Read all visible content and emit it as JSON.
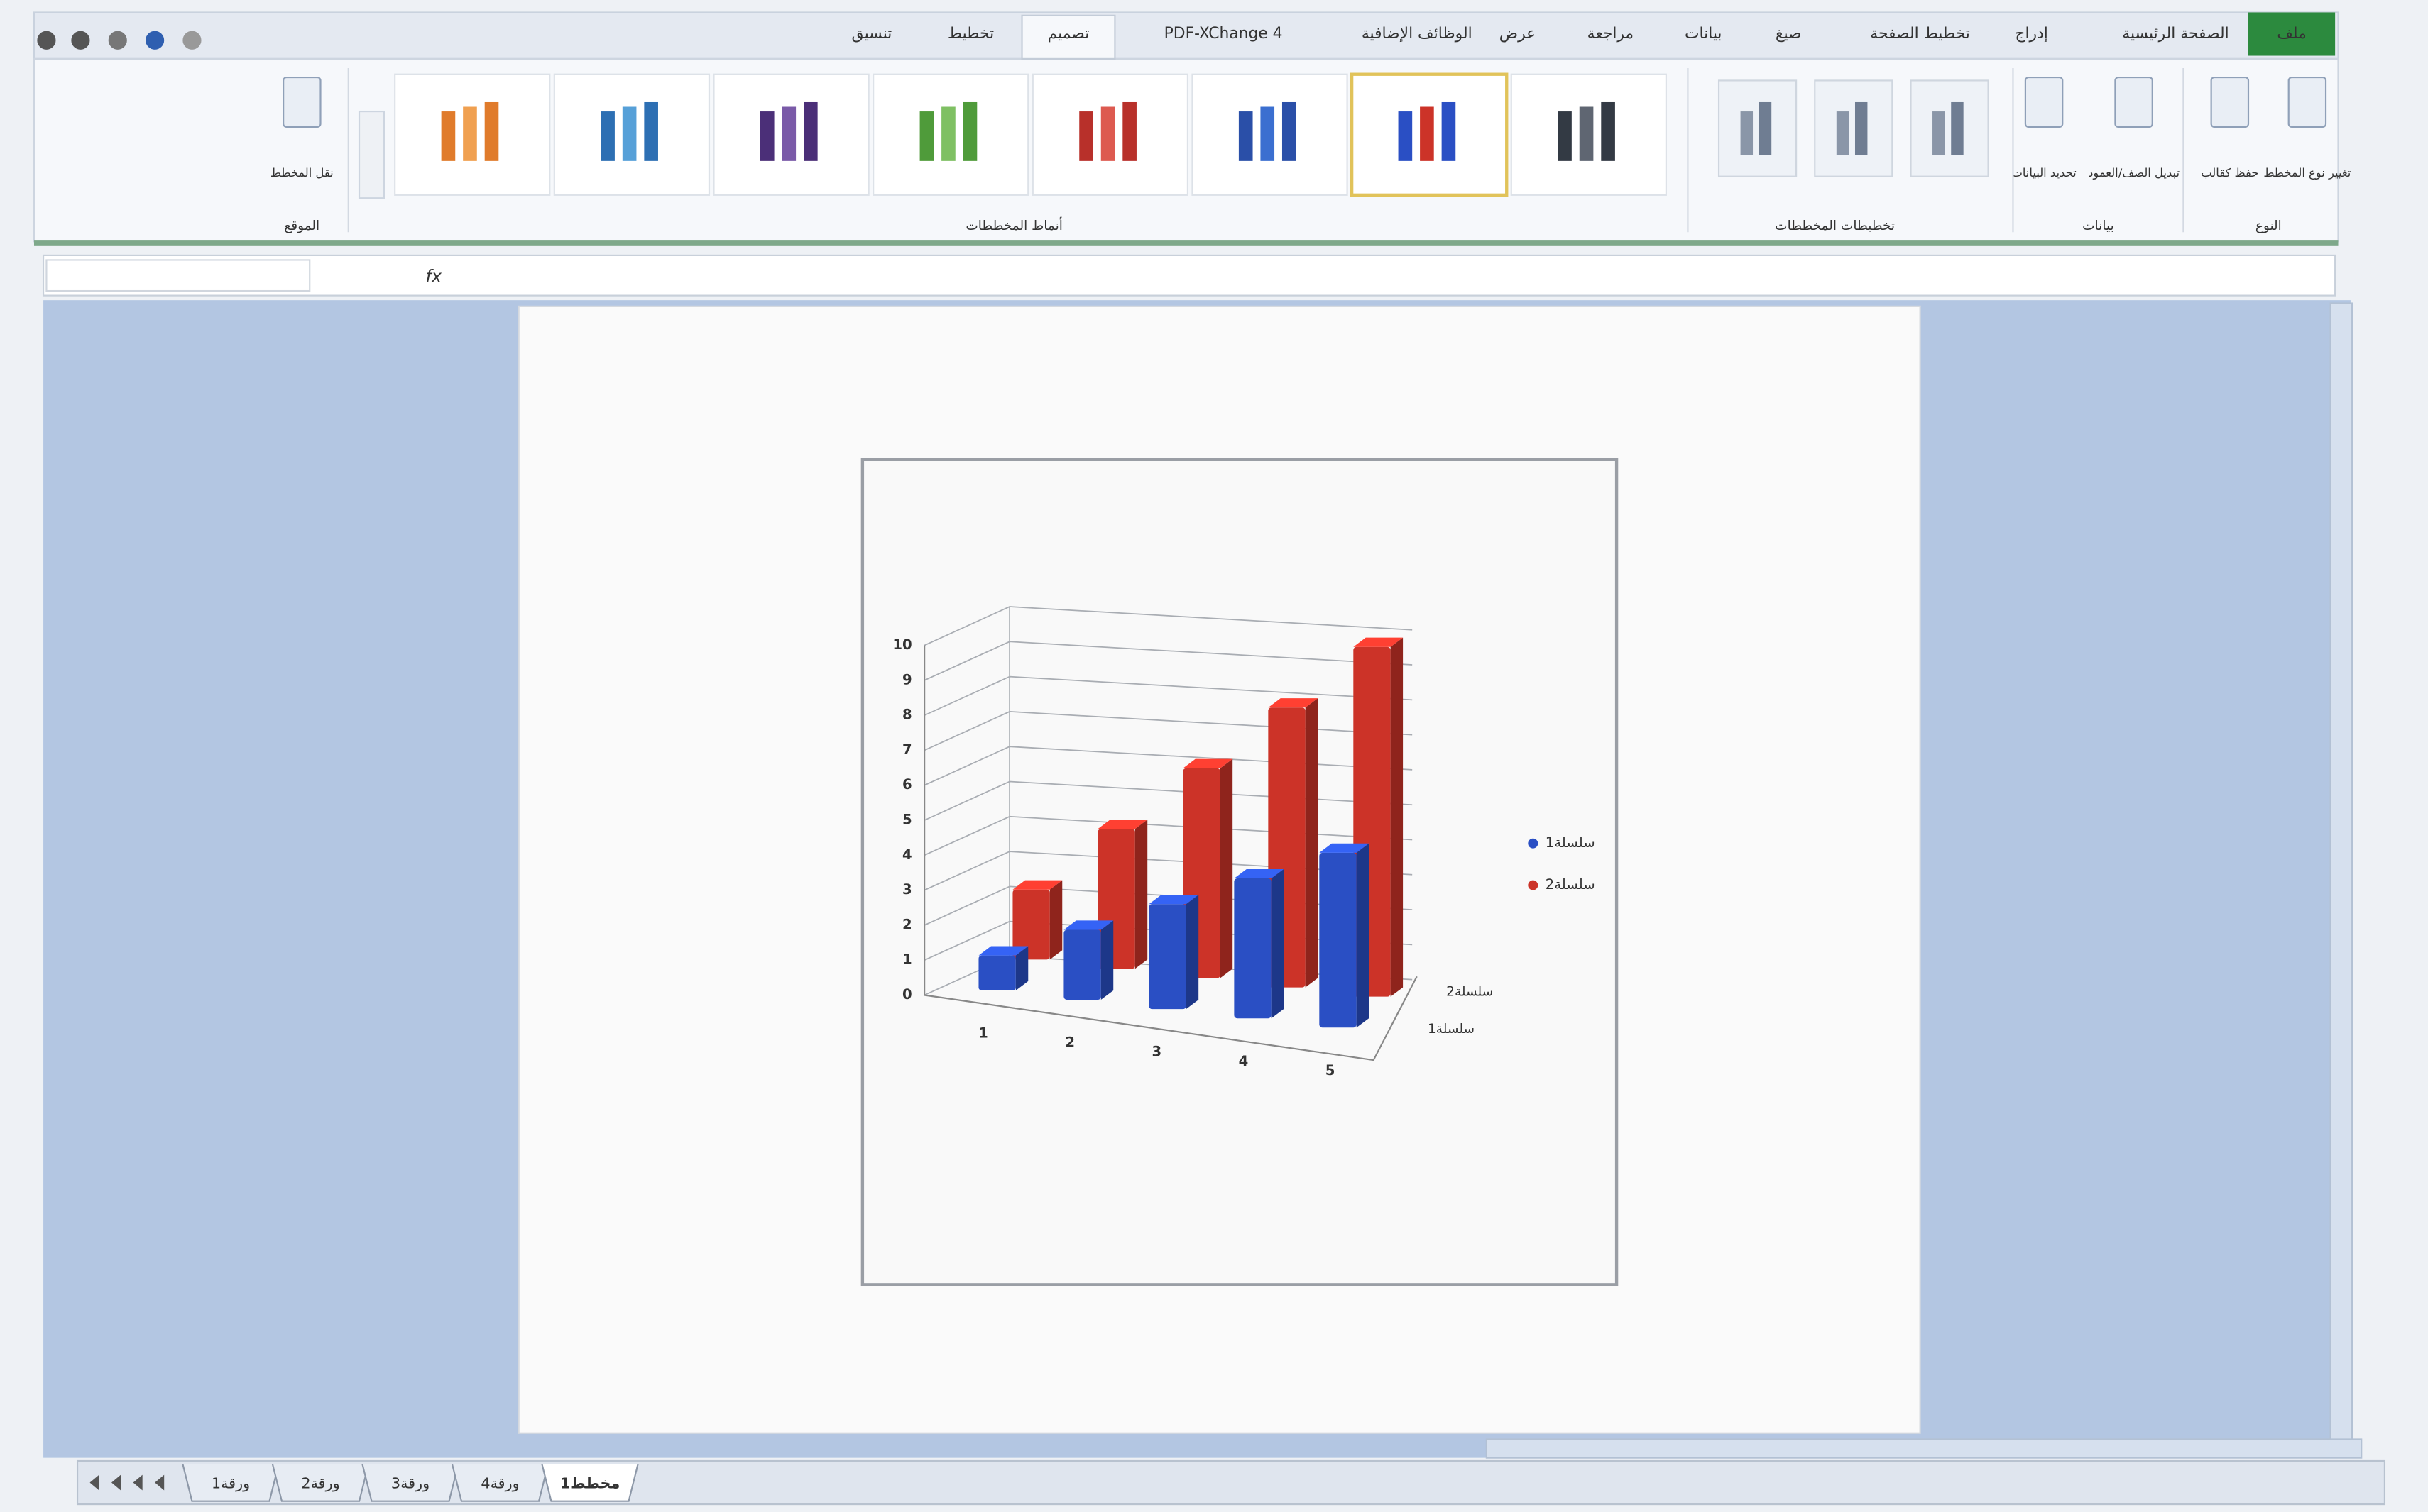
{
  "ribbon": {
    "tabs": [
      "ملف",
      "الصفحة الرئيسية",
      "إدراج",
      "تخطيط الصفحة",
      "صيغ",
      "بيانات",
      "مراجعة",
      "عرض",
      "الوظائف الإضافية",
      "PDF-XChange 4",
      "تصميم",
      "تخطيط",
      "تنسيق"
    ],
    "groups": [
      {
        "label": "النوع",
        "buttons": [
          "تغيير نوع المخطط",
          "حفظ كقالب"
        ]
      },
      {
        "label": "بيانات",
        "buttons": [
          "تبديل الصف/العمود",
          "تحديد البيانات"
        ]
      },
      {
        "label": "تخطيطات المخططات"
      },
      {
        "label": "أنماط المخططات"
      },
      {
        "label": "الموقع",
        "buttons": [
          "نقل المخطط"
        ]
      }
    ]
  },
  "formula_bar": {
    "fx": "fx"
  },
  "chart_data": {
    "type": "bar3d",
    "categories": [
      "1",
      "2",
      "3",
      "4",
      "5"
    ],
    "series": [
      {
        "name": "سلسلة1",
        "color": "#2a4fc4",
        "values": [
          1,
          2,
          3,
          4,
          5
        ]
      },
      {
        "name": "سلسلة2",
        "color": "#cc3328",
        "values": [
          2,
          4,
          6,
          8,
          10
        ]
      }
    ],
    "ylim": [
      0,
      10
    ],
    "yticks": [
      0,
      1,
      2,
      3,
      4,
      5,
      6,
      7,
      8,
      9,
      10
    ],
    "grid": true,
    "legend": "right"
  },
  "sheet_tabs": [
    "ورقة1",
    "ورقة2",
    "ورقة3",
    "ورقة4",
    "مخطط1"
  ]
}
